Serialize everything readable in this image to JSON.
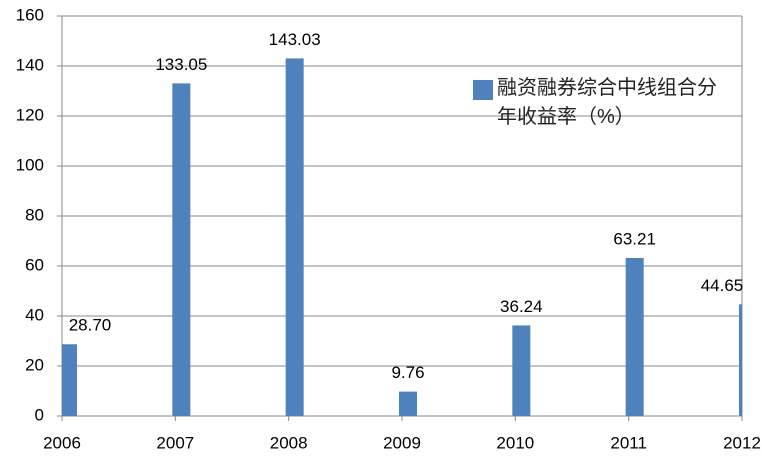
{
  "chart_data": {
    "type": "bar",
    "x": [
      2006,
      2007,
      2008,
      2009,
      2010,
      2011,
      2012
    ],
    "xlim": [
      2006,
      2012
    ],
    "xticks": [
      2006,
      2007,
      2008,
      2009,
      2010,
      2011,
      2012
    ],
    "series": [
      {
        "name": "融资融券综合中线组合分年收益率（%）",
        "color": "#4f81bd",
        "values": [
          28.7,
          133.05,
          143.03,
          9.76,
          36.24,
          63.21,
          44.65
        ],
        "value_labels": [
          "28.70",
          "133.05",
          "143.03",
          "9.76",
          "36.24",
          "63.21",
          "44.65"
        ]
      }
    ],
    "ylim": [
      0,
      160
    ],
    "yticks": [
      0,
      20,
      40,
      60,
      80,
      100,
      120,
      140,
      160
    ],
    "grid": true
  }
}
